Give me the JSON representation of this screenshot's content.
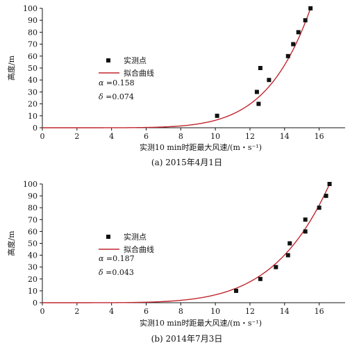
{
  "colors": {
    "fit_line": "#c0262d",
    "marker": "#111111",
    "axis": "#111111"
  },
  "chart_data": [
    {
      "type": "scatter",
      "caption": "(a) 2015年4月1日",
      "xlabel": "实测10 min时距最大风速/(m・s⁻¹)",
      "ylabel": "高度/m",
      "xlim": [
        0,
        17.5
      ],
      "ylim": [
        0,
        100
      ],
      "xticks": [
        0,
        2,
        4,
        6,
        8,
        10,
        12,
        14,
        16
      ],
      "yticks": [
        0,
        10,
        20,
        30,
        40,
        50,
        60,
        70,
        80,
        90,
        100
      ],
      "grid": false,
      "legend_position": "center-left",
      "series": [
        {
          "name": "实测点",
          "marker": "square",
          "x": [
            10.1,
            12.4,
            12.5,
            12.6,
            13.1,
            14.2,
            14.5,
            14.8,
            15.2,
            15.5
          ],
          "y": [
            10,
            30,
            20,
            50,
            40,
            60,
            70,
            80,
            90,
            100
          ]
        },
        {
          "name": "拟合曲线",
          "style": "line",
          "model": "power",
          "x_ref": 15.5,
          "y_ref": 100,
          "alpha_value": 0.158
        }
      ],
      "annotations": [
        {
          "symbol": "α",
          "text": "=0.158"
        },
        {
          "symbol": "δ",
          "text": "=0.074"
        }
      ]
    },
    {
      "type": "scatter",
      "caption": "(b) 2014年7月3日",
      "xlabel": "实测10 min时距最大风速/(m・s⁻¹)",
      "ylabel": "高度/m",
      "xlim": [
        0,
        17.5
      ],
      "ylim": [
        0,
        100
      ],
      "xticks": [
        0,
        2,
        4,
        6,
        8,
        10,
        12,
        14,
        16
      ],
      "yticks": [
        0,
        10,
        20,
        30,
        40,
        50,
        60,
        70,
        80,
        90,
        100
      ],
      "grid": false,
      "legend_position": "center-left",
      "series": [
        {
          "name": "实测点",
          "marker": "square",
          "x": [
            11.2,
            12.6,
            13.5,
            14.2,
            14.3,
            15.2,
            15.2,
            16.0,
            16.4,
            16.6
          ],
          "y": [
            10,
            20,
            30,
            40,
            50,
            60,
            70,
            80,
            90,
            100
          ]
        },
        {
          "name": "拟合曲线",
          "style": "line",
          "model": "power",
          "x_ref": 16.6,
          "y_ref": 100,
          "alpha_value": 0.187
        }
      ],
      "annotations": [
        {
          "symbol": "α",
          "text": "=0.187"
        },
        {
          "symbol": "δ",
          "text": "=0.043"
        }
      ]
    }
  ]
}
